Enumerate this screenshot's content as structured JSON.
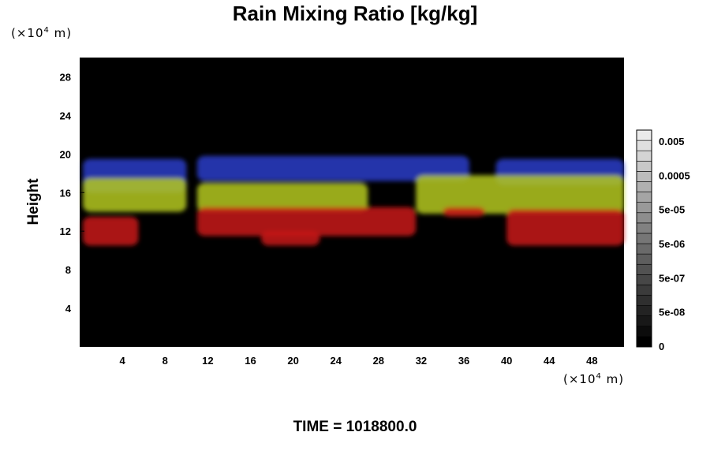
{
  "chart_data": {
    "type": "heatmap",
    "title": "Rain Mixing Ratio [kg/kg]",
    "ylabel": "Height",
    "xlabel": "",
    "x_unit_base": "(×10",
    "x_unit_exp": "4",
    "x_unit_tail": " m)",
    "y_unit_base": "(×10",
    "y_unit_exp": "4",
    "y_unit_tail": " m)",
    "xlim": [
      0,
      51
    ],
    "ylim": [
      0,
      30
    ],
    "x_ticks": [
      4,
      8,
      12,
      16,
      20,
      24,
      28,
      32,
      36,
      40,
      44,
      48
    ],
    "x_tick_labels": [
      "4",
      "8",
      "12",
      "16",
      "20",
      "24",
      "28",
      "32",
      "36",
      "40",
      "44",
      "48"
    ],
    "y_ticks": [
      4,
      8,
      12,
      16,
      20,
      24,
      28
    ],
    "y_tick_labels": [
      "4",
      "8",
      "12",
      "16",
      "20",
      "24",
      "28"
    ],
    "background_color": "#000000",
    "colorbar": {
      "labels": [
        "0.005",
        "0.0005",
        "5e-05",
        "5e-06",
        "5e-07",
        "5e-08",
        "0"
      ],
      "levels": 21
    },
    "layers": [
      {
        "name": "upper",
        "color": "#2a3cc8",
        "height_range": [
          16.5,
          19.5
        ]
      },
      {
        "name": "middle",
        "color": "#b4c81e",
        "height_range": [
          13.5,
          17.5
        ]
      },
      {
        "name": "lower",
        "color": "#c81414",
        "height_range": [
          10.5,
          14.0
        ]
      }
    ],
    "regions": [
      {
        "layer": "upper",
        "x_range": [
          0.3,
          10.0
        ],
        "y_range": [
          16.0,
          19.5
        ]
      },
      {
        "layer": "upper",
        "x_range": [
          11.0,
          36.5
        ],
        "y_range": [
          17.2,
          19.8
        ]
      },
      {
        "layer": "upper",
        "x_range": [
          39.0,
          51.0
        ],
        "y_range": [
          16.8,
          19.5
        ]
      },
      {
        "layer": "middle",
        "x_range": [
          0.3,
          10.0
        ],
        "y_range": [
          14.0,
          17.5
        ]
      },
      {
        "layer": "middle",
        "x_range": [
          11.0,
          27.0
        ],
        "y_range": [
          14.0,
          17.0
        ]
      },
      {
        "layer": "middle",
        "x_range": [
          31.5,
          51.0
        ],
        "y_range": [
          13.8,
          17.8
        ]
      },
      {
        "layer": "lower",
        "x_range": [
          0.3,
          5.5
        ],
        "y_range": [
          10.5,
          13.5
        ]
      },
      {
        "layer": "lower",
        "x_range": [
          11.0,
          31.5
        ],
        "y_range": [
          11.5,
          14.5
        ]
      },
      {
        "layer": "lower",
        "x_range": [
          17.0,
          22.5
        ],
        "y_range": [
          10.5,
          12.0
        ]
      },
      {
        "layer": "lower",
        "x_range": [
          34.0,
          38.0
        ],
        "y_range": [
          13.5,
          14.5
        ]
      },
      {
        "layer": "lower",
        "x_range": [
          40.0,
          51.0
        ],
        "y_range": [
          10.5,
          14.3
        ]
      }
    ]
  },
  "time_label": "TIME = 1018800.0"
}
